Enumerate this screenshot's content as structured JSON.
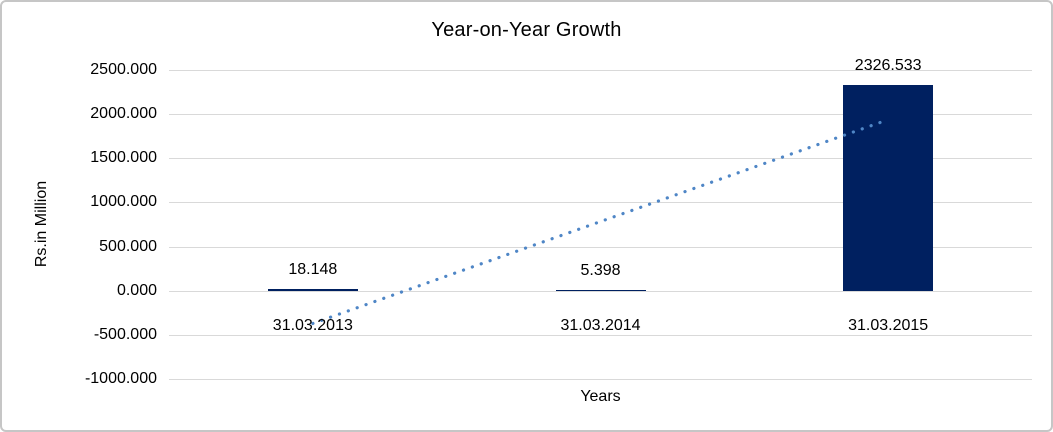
{
  "chart_data": {
    "type": "bar",
    "title": "Year-on-Year Growth",
    "xlabel": "Years",
    "ylabel": "Rs.in Million",
    "categories": [
      "31.03.2013",
      "31.03.2014",
      "31.03.2015"
    ],
    "values": [
      18.148,
      5.398,
      2326.533
    ],
    "data_labels": [
      "18.148",
      "5.398",
      "2326.533"
    ],
    "ylim": [
      -1000,
      2500
    ],
    "yticks": [
      2500,
      2000,
      1500,
      1000,
      500,
      0,
      -500,
      -1000
    ],
    "ytick_labels": [
      "2500.000",
      "2000.000",
      "1500.000",
      "1000.000",
      "500.000",
      "0.000",
      "-500.000",
      "-1000.000"
    ],
    "grid": true,
    "legend_position": "none",
    "bar_color": "#002060",
    "gridline_color": "#d9d9d9",
    "trendline": {
      "type": "linear",
      "style": "dotted",
      "color": "#4f86c6",
      "start_value": -370.833,
      "end_value": 1937.552
    }
  }
}
